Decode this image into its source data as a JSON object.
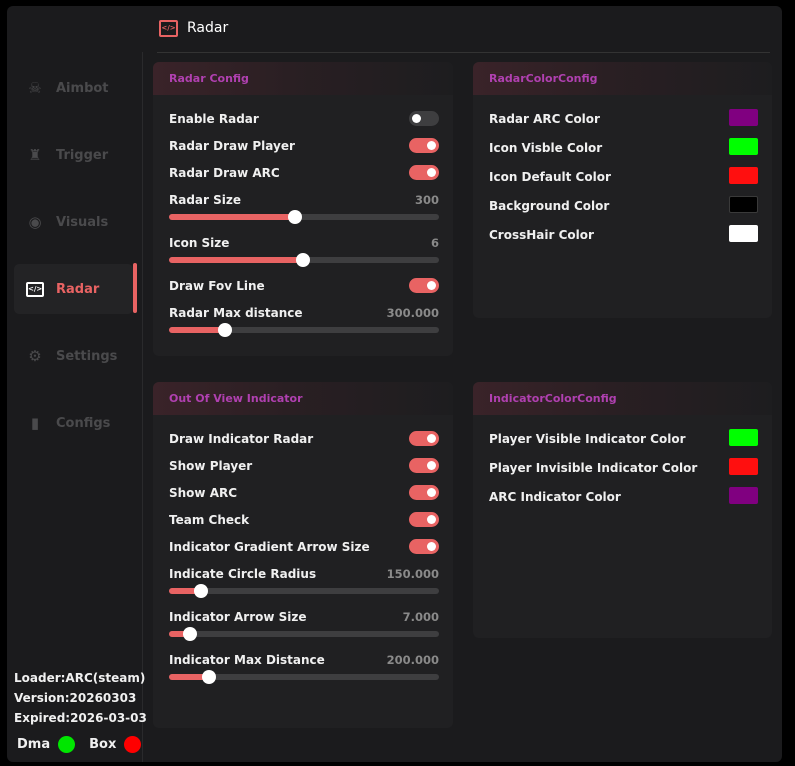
{
  "header": {
    "title": "Radar",
    "icon": "code-window-icon"
  },
  "sidebar": {
    "items": [
      {
        "label": "Aimbot",
        "icon": "skull-icon",
        "active": false
      },
      {
        "label": "Trigger",
        "icon": "spy-icon",
        "active": false
      },
      {
        "label": "Visuals",
        "icon": "eye-icon",
        "active": false
      },
      {
        "label": "Radar",
        "icon": "code-window-icon",
        "active": true
      },
      {
        "label": "Settings",
        "icon": "gears-icon",
        "active": false
      },
      {
        "label": "Configs",
        "icon": "file-icon",
        "active": false
      }
    ],
    "loader": "Loader:ARC(steam)",
    "version": "Version:20260303",
    "expired": "Expired:2026-03-03",
    "status": [
      {
        "label": "Dma",
        "color": "#00e600"
      },
      {
        "label": "Box",
        "color": "#ff0000"
      }
    ]
  },
  "radar_config": {
    "title": "Radar Config",
    "rows": [
      {
        "type": "toggle",
        "label": "Enable Radar",
        "on": false
      },
      {
        "type": "toggle",
        "label": "Radar Draw Player",
        "on": true
      },
      {
        "type": "toggle",
        "label": "Radar Draw ARC",
        "on": true
      },
      {
        "type": "slider",
        "label": "Radar Size",
        "value": "300",
        "fraction": 0.467
      },
      {
        "type": "slider",
        "label": "Icon Size",
        "value": "6",
        "fraction": 0.496
      },
      {
        "type": "toggle",
        "label": "Draw Fov Line",
        "on": true
      },
      {
        "type": "slider",
        "label": "Radar Max distance",
        "value": "300.000",
        "fraction": 0.207
      }
    ]
  },
  "radar_color_config": {
    "title": "RadarColorConfig",
    "rows": [
      {
        "label": "Radar ARC Color",
        "color": "#800080"
      },
      {
        "label": "Icon Visble Color",
        "color": "#00ff00"
      },
      {
        "label": "Icon Default Color",
        "color": "#ff0f0f"
      },
      {
        "label": "Background Color",
        "color": "#000000"
      },
      {
        "label": "CrossHair Color",
        "color": "#ffffff"
      }
    ]
  },
  "indicator": {
    "title": "Out Of View Indicator",
    "rows": [
      {
        "type": "toggle",
        "label": "Draw Indicator Radar",
        "on": true
      },
      {
        "type": "toggle",
        "label": "Show Player",
        "on": true
      },
      {
        "type": "toggle",
        "label": "Show ARC",
        "on": true
      },
      {
        "type": "toggle",
        "label": "Team Check",
        "on": true
      },
      {
        "type": "toggle",
        "label": "Indicator Gradient Arrow Size",
        "on": true
      },
      {
        "type": "slider",
        "label": "Indicate Circle Radius",
        "value": "150.000",
        "fraction": 0.119
      },
      {
        "type": "slider",
        "label": "Indicator Arrow Size",
        "value": "7.000",
        "fraction": 0.078
      },
      {
        "type": "slider",
        "label": "Indicator Max Distance",
        "value": "200.000",
        "fraction": 0.148
      }
    ]
  },
  "indicator_color_config": {
    "title": "IndicatorColorConfig",
    "rows": [
      {
        "label": "Player Visible Indicator Color",
        "color": "#00ff00"
      },
      {
        "label": "Player Invisible Indicator Color",
        "color": "#ff0f0f"
      },
      {
        "label": "ARC Indicator Color",
        "color": "#800080"
      }
    ]
  }
}
